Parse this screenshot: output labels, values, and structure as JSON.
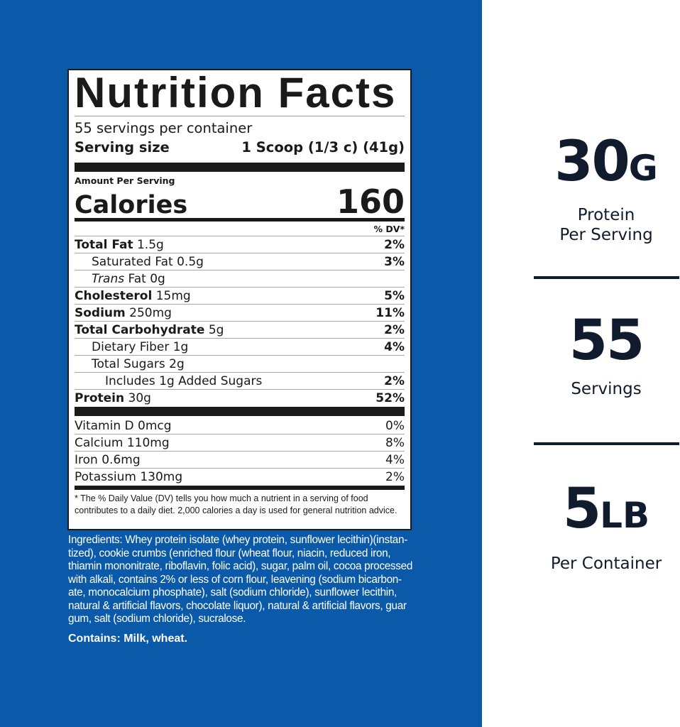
{
  "colors": {
    "background": "#0b5aa9",
    "text_dark": "#111b2e"
  },
  "label": {
    "title": "Nutrition Facts",
    "servings_per_container": "55 servings per container",
    "serving_size_label": "Serving size",
    "serving_size_value": "1 Scoop (1/3 c) (41g)",
    "amount_per_serving": "Amount Per Serving",
    "calories_label": "Calories",
    "calories_value": "160",
    "dv_header": "% DV*",
    "nutrients": [
      {
        "name": "Total Fat",
        "amount": "1.5g",
        "dv": "2%"
      },
      {
        "name": "Saturated Fat",
        "amount": "0.5g",
        "dv": "3%"
      },
      {
        "name": "Trans",
        "name_suffix": "Fat",
        "amount": "0g",
        "dv": ""
      },
      {
        "name": "Cholesterol",
        "amount": "15mg",
        "dv": "5%"
      },
      {
        "name": "Sodium",
        "amount": "250mg",
        "dv": "11%"
      },
      {
        "name": "Total Carbohydrate",
        "amount": "5g",
        "dv": "2%"
      },
      {
        "name": "Dietary Fiber",
        "amount": "1g",
        "dv": "4%"
      },
      {
        "name": "Total Sugars",
        "amount": "2g",
        "dv": ""
      },
      {
        "name": "Includes 1g Added Sugars",
        "amount": "",
        "dv": "2%"
      },
      {
        "name": "Protein",
        "amount": "30g",
        "dv": "52%"
      }
    ],
    "vitamins": [
      {
        "name": "Vitamin D",
        "amount": "0mcg",
        "dv": "0%"
      },
      {
        "name": "Calcium",
        "amount": "110mg",
        "dv": "8%"
      },
      {
        "name": "Iron",
        "amount": "0.6mg",
        "dv": "4%"
      },
      {
        "name": "Potassium",
        "amount": "130mg",
        "dv": "2%"
      }
    ],
    "footnote": "* The % Daily Value (DV) tells you how much a nutrient in a serving of food contributes to a daily diet. 2,000 calories a day is used for general nutrition advice."
  },
  "ingredients": "Ingredients: Whey protein isolate (whey protein, sunflower lecithin)(instan- tized), cookie crumbs (enriched flour (wheat flour, niacin, reduced iron, thiamin mononitrate, riboflavin, folic acid), sugar, palm oil, cocoa processed with alkali, contains 2% or less of corn flour, leavening (sodium bicarbon- ate, monocalcium phosphate), salt (sodium chloride), sunflower lecithin, natural & artificial flavors, chocolate liquor), natural & artificial flavors, guar gum, salt (sodium chloride), sucralose.",
  "contains": "Contains: Milk, wheat.",
  "stats": [
    {
      "value": "30",
      "unit": "G",
      "caption_1": "Protein",
      "caption_2": "Per Serving"
    },
    {
      "value": "55",
      "unit": "",
      "caption_1": "Servings",
      "caption_2": ""
    },
    {
      "value": "5",
      "unit": "LB",
      "caption_1": "Per Container",
      "caption_2": ""
    }
  ]
}
